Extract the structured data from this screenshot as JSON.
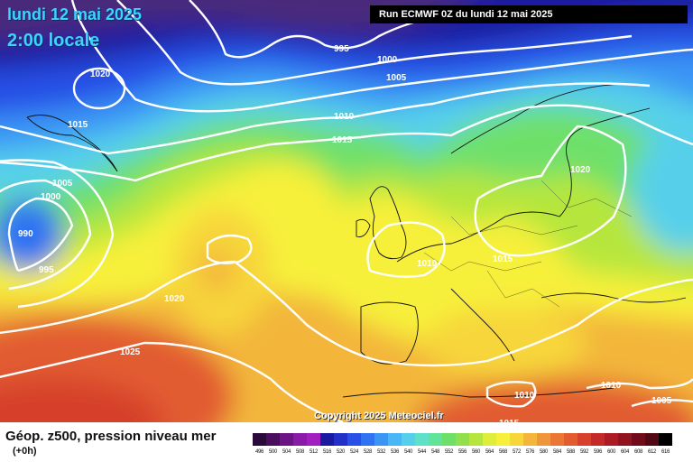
{
  "header": {
    "date": "lundi 12 mai 2025",
    "time": "2:00 locale",
    "run": "Run ECMWF 0Z du lundi 12 mai 2025"
  },
  "footer": {
    "copyright": "Copyright 2025 Meteociel.fr",
    "caption": "Géop. z500, pression niveau mer",
    "step": "(+0h)"
  },
  "isobar_labels": [
    "995",
    "1000",
    "1005",
    "1020",
    "1015",
    "1010",
    "1015",
    "1020",
    "1005",
    "1000",
    "990",
    "995",
    "1020",
    "1025",
    "1010",
    "1015",
    "1010",
    "1010",
    "1005",
    "1015"
  ],
  "scale": {
    "ticks": [
      "496",
      "500",
      "504",
      "508",
      "512",
      "516",
      "520",
      "524",
      "528",
      "532",
      "536",
      "540",
      "544",
      "548",
      "552",
      "556",
      "560",
      "564",
      "568",
      "572",
      "576",
      "580",
      "584",
      "588",
      "592",
      "596",
      "600",
      "604",
      "608",
      "612",
      "616"
    ],
    "colors": [
      "#2a0a3a",
      "#4a0f5c",
      "#6a1485",
      "#8a1aa8",
      "#a11fbf",
      "#1a1aa0",
      "#2030c8",
      "#2850e6",
      "#2f72f2",
      "#3a95f5",
      "#49b6f5",
      "#56d0ea",
      "#5fe0c8",
      "#60e49a",
      "#6ee06a",
      "#8fe04c",
      "#b6e63e",
      "#dfee3a",
      "#f7f03a",
      "#f7d63a",
      "#f3b63a",
      "#ef963a",
      "#ea7834",
      "#e25c30",
      "#d6402c",
      "#c42a28",
      "#ac1c24",
      "#901420",
      "#700c1a",
      "#500814",
      "#000000"
    ]
  }
}
